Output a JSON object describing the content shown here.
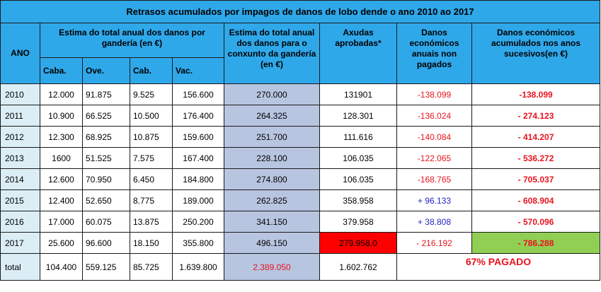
{
  "title": "Retrasos acumulados por impagos de danos de lobo dende o ano 2010 ao 2017",
  "headers": {
    "year": "ANO",
    "damages_by_livestock": "Estima do total anual dos danos por gandería (en €)",
    "damages_total": "Estima do total anual dos danos para o conxunto da gandería (en €)",
    "aid": "Axudas aprobadas*",
    "unpaid": "Danos económicos anuais non pagados",
    "accumulated": "Danos económicos acumulados nos anos sucesivos(en €)",
    "sub_caba": "Caba.",
    "sub_ove": "Ove.",
    "sub_cab": "Cab.",
    "sub_vac": "Vac."
  },
  "rows": [
    {
      "year": "2010",
      "caba": "12.000",
      "ove": "91.875",
      "cab": "9.525",
      "vac": "156.600",
      "total": "270.000",
      "aid": "131901",
      "unpaid": "-138.099",
      "accumulated": "-138.099"
    },
    {
      "year": "2011",
      "caba": "10.900",
      "ove": "66.525",
      "cab": "10.500",
      "vac": "176.400",
      "total": "264.325",
      "aid": "128.301",
      "unpaid": "-136.024",
      "accumulated": "- 274.123"
    },
    {
      "year": "2012",
      "caba": "12.300",
      "ove": "68.925",
      "cab": "10.875",
      "vac": "159.600",
      "total": "251.700",
      "aid": "111.616",
      "unpaid": "-140.084",
      "accumulated": "- 414.207"
    },
    {
      "year": "2013",
      "caba": "1600",
      "ove": "51.525",
      "cab": "7.575",
      "vac": "167.400",
      "total": "228.100",
      "aid": "106.035",
      "unpaid": "-122.065",
      "accumulated": "- 536.272"
    },
    {
      "year": "2014",
      "caba": "12.600",
      "ove": "70.950",
      "cab": "6.450",
      "vac": "184.800",
      "total": "274.800",
      "aid": "106.035",
      "unpaid": "-168.765",
      "accumulated": "- 705.037"
    },
    {
      "year": "2015",
      "caba": "12.400",
      "ove": "52.650",
      "cab": "8.775",
      "vac": "189.000",
      "total": "262.825",
      "aid": "358.958",
      "unpaid": "+ 96.133",
      "accumulated": "- 608.904"
    },
    {
      "year": "2016",
      "caba": "17.000",
      "ove": "60.075",
      "cab": "13.875",
      "vac": "250.200",
      "total": "341.150",
      "aid": "379.958",
      "unpaid": "+ 38.808",
      "accumulated": "- 570.096"
    },
    {
      "year": "2017",
      "caba": "25.600",
      "ove": "96.600",
      "cab": "18.150",
      "vac": "355.800",
      "total": "496.150",
      "aid": "279.958,0",
      "unpaid": "- 216.192",
      "accumulated": "- 786.288"
    }
  ],
  "totals": {
    "label": "total",
    "caba": "104.400",
    "ove": "559.125",
    "cab": "85.725",
    "vac": "1.639.800",
    "total": "2.389.050",
    "aid": "1.602.762",
    "paid_note": "67% PAGADO"
  },
  "colors": {
    "header_bg": "#2fa8ea",
    "year_bg": "#dbeef5",
    "total_col_bg": "#b8c5e1",
    "negative_text": "#e8141e",
    "positive_text": "#2323c8",
    "aid_2017_bg": "#ff0000",
    "accum_2017_bg": "#90cf54"
  }
}
